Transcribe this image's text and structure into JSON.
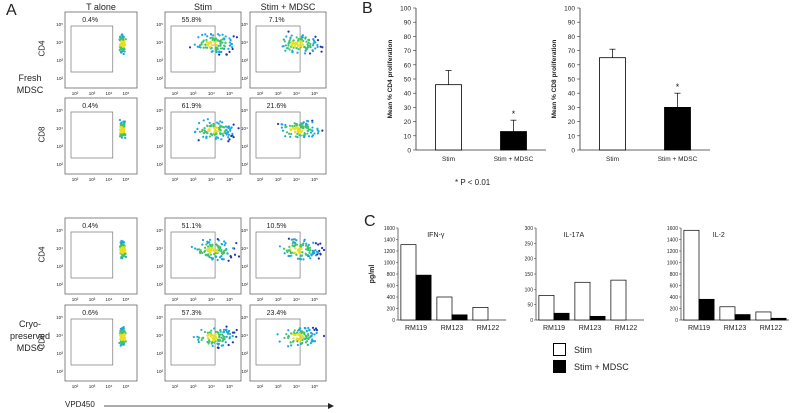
{
  "panels": {
    "a": "A",
    "b": "B",
    "c": "C"
  },
  "flow": {
    "columns": [
      "T alone",
      "Stim",
      "Stim + MDSC"
    ],
    "groups": [
      {
        "label_lines": [
          "Fresh",
          "MDSC"
        ],
        "rows": [
          {
            "marker": "CD4",
            "percents": [
              "0.4%",
              "55.8%",
              "7.1%"
            ]
          },
          {
            "marker": "CD8",
            "percents": [
              "0.4%",
              "61.9%",
              "21.6%"
            ]
          }
        ]
      },
      {
        "label_lines": [
          "Cryo-",
          "preserved",
          "MDSC"
        ],
        "rows": [
          {
            "marker": "CD4",
            "percents": [
              "0.4%",
              "51.1%",
              "10.5%"
            ]
          },
          {
            "marker": "CD8",
            "percents": [
              "0.6%",
              "57.3%",
              "23.4%"
            ]
          }
        ]
      }
    ],
    "xaxis": "VPD450",
    "ticks": [
      "10²",
      "10³",
      "10⁴",
      "10⁵"
    ],
    "yticks": [
      "10²",
      "10³",
      "10⁴",
      "10⁵"
    ]
  },
  "chart_data": [
    {
      "type": "bar",
      "categories": [
        "Stim",
        "Stim + MDSC"
      ],
      "values": [
        46,
        13
      ],
      "errors": [
        10,
        8
      ],
      "ylabel": "Mean % CD4 proliferation",
      "ylim": [
        0,
        100
      ],
      "yticks": [
        0,
        10,
        20,
        30,
        40,
        50,
        60,
        70,
        80,
        90,
        100
      ],
      "annotation": "*",
      "colors": [
        "#ffffff",
        "#000000"
      ]
    },
    {
      "type": "bar",
      "categories": [
        "Stim",
        "Stim + MDSC"
      ],
      "values": [
        65,
        30
      ],
      "errors": [
        6,
        10
      ],
      "ylabel": "Mean % CD8 proliferation",
      "ylim": [
        0,
        100
      ],
      "yticks": [
        0,
        10,
        20,
        30,
        40,
        50,
        60,
        70,
        80,
        90,
        100
      ],
      "annotation": "*",
      "colors": [
        "#ffffff",
        "#000000"
      ]
    },
    {
      "type": "bar",
      "title": "IFN-γ",
      "ylabel": "pg/ml",
      "categories": [
        "RM119",
        "RM123",
        "RM122"
      ],
      "series": [
        {
          "name": "Stim",
          "values": [
            1310,
            400,
            220
          ]
        },
        {
          "name": "Stim + MDSC",
          "values": [
            780,
            90,
            0
          ]
        }
      ],
      "ylim": [
        0,
        1600
      ],
      "yticks": [
        0,
        200,
        400,
        600,
        800,
        1000,
        1200,
        1400,
        1600
      ]
    },
    {
      "type": "bar",
      "title": "IL-17A",
      "categories": [
        "RM119",
        "RM123",
        "RM122"
      ],
      "series": [
        {
          "name": "Stim",
          "values": [
            80,
            123,
            130
          ]
        },
        {
          "name": "Stim + MDSC",
          "values": [
            22,
            12,
            0
          ]
        }
      ],
      "ylim": [
        0,
        300
      ],
      "yticks": [
        0,
        50,
        100,
        150,
        200,
        250,
        300
      ]
    },
    {
      "type": "bar",
      "title": "IL-2",
      "categories": [
        "RM119",
        "RM123",
        "RM122"
      ],
      "series": [
        {
          "name": "Stim",
          "values": [
            1560,
            230,
            140
          ]
        },
        {
          "name": "Stim + MDSC",
          "values": [
            360,
            95,
            30
          ]
        }
      ],
      "ylim": [
        0,
        1600
      ],
      "yticks": [
        0,
        200,
        400,
        600,
        800,
        1000,
        1200,
        1400,
        1600
      ]
    }
  ],
  "pvalue_note": "* P < 0.01",
  "legend": {
    "items": [
      {
        "label": "Stim",
        "color": "#ffffff"
      },
      {
        "label": "Stim + MDSC",
        "color": "#000000"
      }
    ]
  }
}
